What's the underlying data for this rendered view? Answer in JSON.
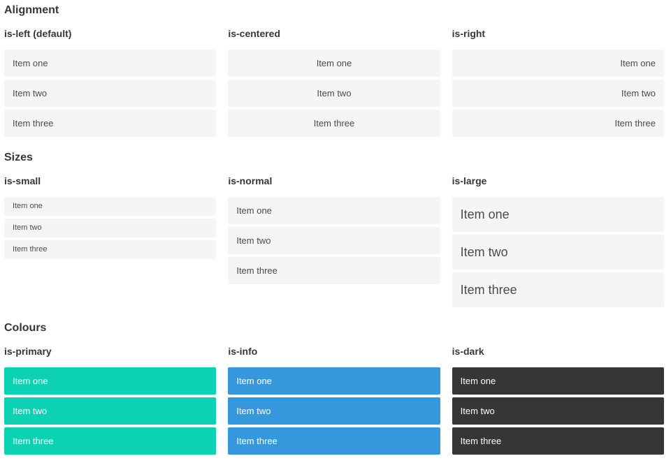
{
  "colors": {
    "item_bg": "#f5f5f5",
    "item_text": "#4a4a4a",
    "heading_text": "#363636",
    "primary": "#0cd1b2",
    "info": "#3598dc",
    "dark": "#363636",
    "colour_item_text": "#ffffff"
  },
  "sections": [
    {
      "title": "Alignment",
      "groups": [
        {
          "label": "is-left (default)",
          "align": "left",
          "size": "normal",
          "color": "default",
          "items": [
            "Item one",
            "Item two",
            "Item three"
          ]
        },
        {
          "label": "is-centered",
          "align": "center",
          "size": "normal",
          "color": "default",
          "items": [
            "Item one",
            "Item two",
            "Item three"
          ]
        },
        {
          "label": "is-right",
          "align": "right",
          "size": "normal",
          "color": "default",
          "items": [
            "Item one",
            "Item two",
            "Item three"
          ]
        }
      ]
    },
    {
      "title": "Sizes",
      "groups": [
        {
          "label": "is-small",
          "align": "left",
          "size": "small",
          "color": "default",
          "items": [
            "Item one",
            "Item two",
            "Item three"
          ]
        },
        {
          "label": "is-normal",
          "align": "left",
          "size": "normal",
          "color": "default",
          "items": [
            "Item one",
            "Item two",
            "Item three"
          ]
        },
        {
          "label": "is-large",
          "align": "left",
          "size": "large",
          "color": "default",
          "items": [
            "Item one",
            "Item two",
            "Item three"
          ]
        }
      ]
    },
    {
      "title": "Colours",
      "groups": [
        {
          "label": "is-primary",
          "align": "left",
          "size": "normal",
          "color": "primary",
          "items": [
            "Item one",
            "Item two",
            "Item three"
          ]
        },
        {
          "label": "is-info",
          "align": "left",
          "size": "normal",
          "color": "info",
          "items": [
            "Item one",
            "Item two",
            "Item three"
          ]
        },
        {
          "label": "is-dark",
          "align": "left",
          "size": "normal",
          "color": "dark",
          "items": [
            "Item one",
            "Item two",
            "Item three"
          ]
        }
      ]
    }
  ]
}
